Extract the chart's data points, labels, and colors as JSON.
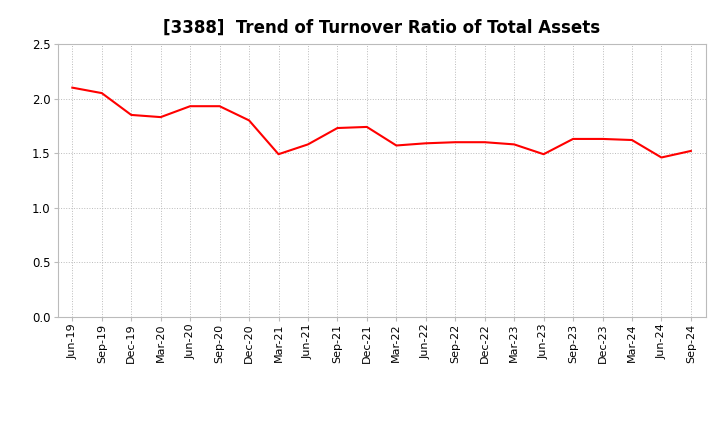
{
  "title": "[3388]  Trend of Turnover Ratio of Total Assets",
  "line_color": "#FF0000",
  "line_width": 1.5,
  "background_color": "#FFFFFF",
  "grid_color": "#AAAAAA",
  "ylim": [
    0.0,
    2.5
  ],
  "yticks": [
    0.0,
    0.5,
    1.0,
    1.5,
    2.0,
    2.5
  ],
  "labels": [
    "Jun-19",
    "Sep-19",
    "Dec-19",
    "Mar-20",
    "Jun-20",
    "Sep-20",
    "Dec-20",
    "Mar-21",
    "Jun-21",
    "Sep-21",
    "Dec-21",
    "Mar-22",
    "Jun-22",
    "Sep-22",
    "Dec-22",
    "Mar-23",
    "Jun-23",
    "Sep-23",
    "Dec-23",
    "Mar-24",
    "Jun-24",
    "Sep-24"
  ],
  "values": [
    2.1,
    2.05,
    1.85,
    1.83,
    1.93,
    1.93,
    1.8,
    1.49,
    1.58,
    1.73,
    1.74,
    1.57,
    1.59,
    1.6,
    1.6,
    1.58,
    1.49,
    1.63,
    1.63,
    1.62,
    1.46,
    1.52
  ],
  "title_fontsize": 12,
  "tick_fontsize": 8,
  "ytick_fontsize": 8.5
}
